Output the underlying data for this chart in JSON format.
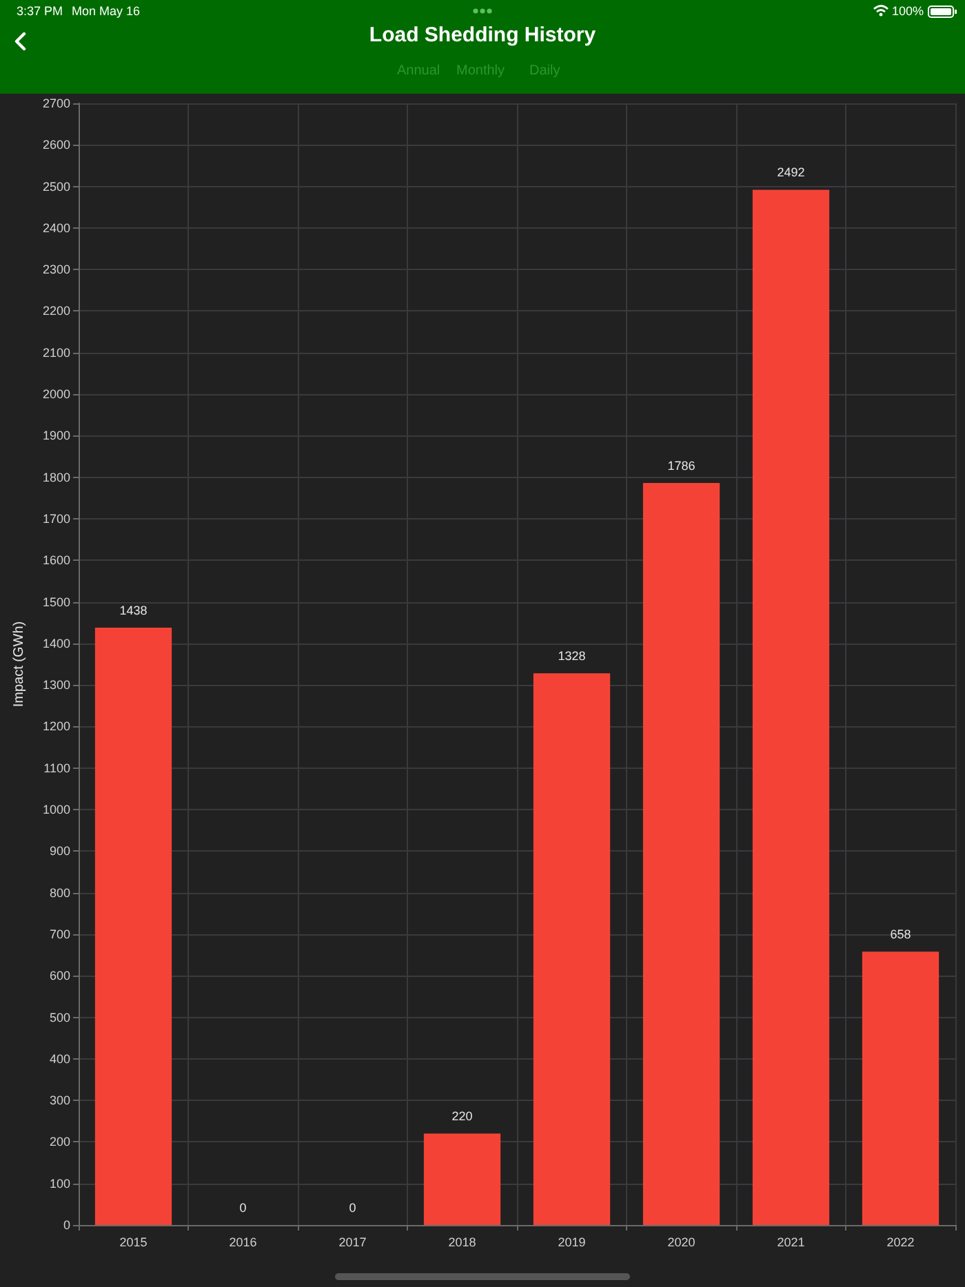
{
  "chart_data": {
    "type": "bar",
    "title": "Load Shedding History",
    "ylabel": "Impact (GWh)",
    "categories": [
      "2015",
      "2016",
      "2017",
      "2018",
      "2019",
      "2020",
      "2021",
      "2022"
    ],
    "values": [
      1438,
      0,
      0,
      220,
      1328,
      1786,
      2492,
      658
    ],
    "color": "#f44336",
    "ylim": [
      0,
      2700
    ],
    "yticks": [
      0,
      100,
      200,
      300,
      400,
      500,
      600,
      700,
      800,
      900,
      1000,
      1100,
      1200,
      1300,
      1400,
      1500,
      1600,
      1700,
      1800,
      1900,
      2000,
      2100,
      2200,
      2300,
      2400,
      2500,
      2600,
      2700
    ],
    "grid": true,
    "data_labels": true,
    "annotations": [
      "3:37 PM",
      "Mon May 16",
      "100%",
      "Annual",
      "Monthly",
      "Daily"
    ]
  }
}
